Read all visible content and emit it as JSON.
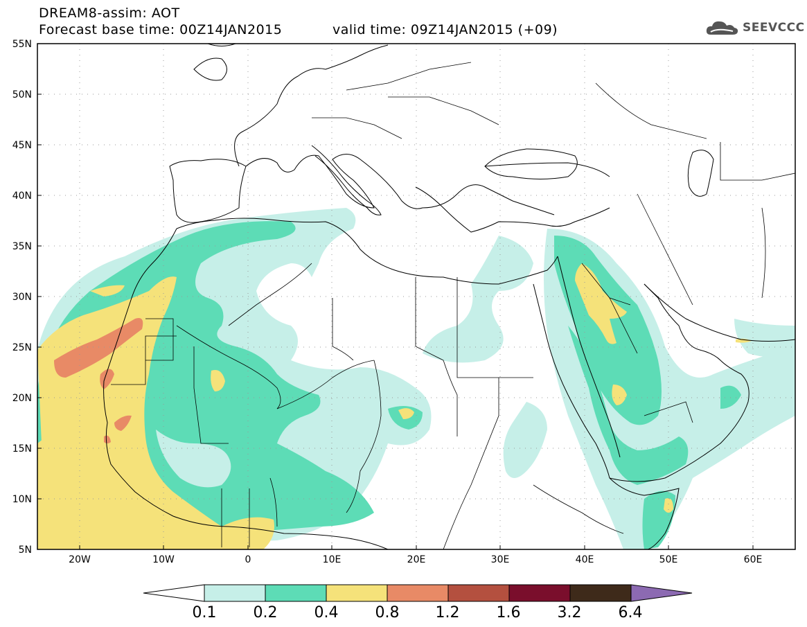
{
  "header": {
    "title": "DREAM8-assim: AOT",
    "base_time": "Forecast base time: 00Z14JAN2015",
    "valid_time": "valid time: 09Z14JAN2015 (+09)"
  },
  "logo": {
    "text": "SEEVCCC",
    "icon": "cloud-icon"
  },
  "map": {
    "lat_labels": [
      "55N",
      "50N",
      "45N",
      "40N",
      "35N",
      "30N",
      "25N",
      "20N",
      "15N",
      "10N",
      "5N"
    ],
    "lon_labels": [
      "20W",
      "10W",
      "0",
      "10E",
      "20E",
      "30E",
      "40E",
      "50E",
      "60E"
    ],
    "lat_range": [
      5,
      55
    ],
    "lon_range": [
      -25,
      65
    ],
    "grid": "dotted"
  },
  "colorbar": {
    "labels": [
      "0.1",
      "0.2",
      "0.4",
      "0.8",
      "1.2",
      "1.6",
      "3.2",
      "6.4"
    ],
    "colors": [
      "#ffffff",
      "#c6efe8",
      "#5ddcb6",
      "#f5e27a",
      "#e88a66",
      "#b4503f",
      "#7a0e2c",
      "#3e2a1a",
      "#8c6ab2"
    ]
  },
  "colors": {
    "level1": "#c6efe8",
    "level2": "#5ddcb6",
    "level3": "#f5e27a",
    "level4": "#e88a66"
  }
}
